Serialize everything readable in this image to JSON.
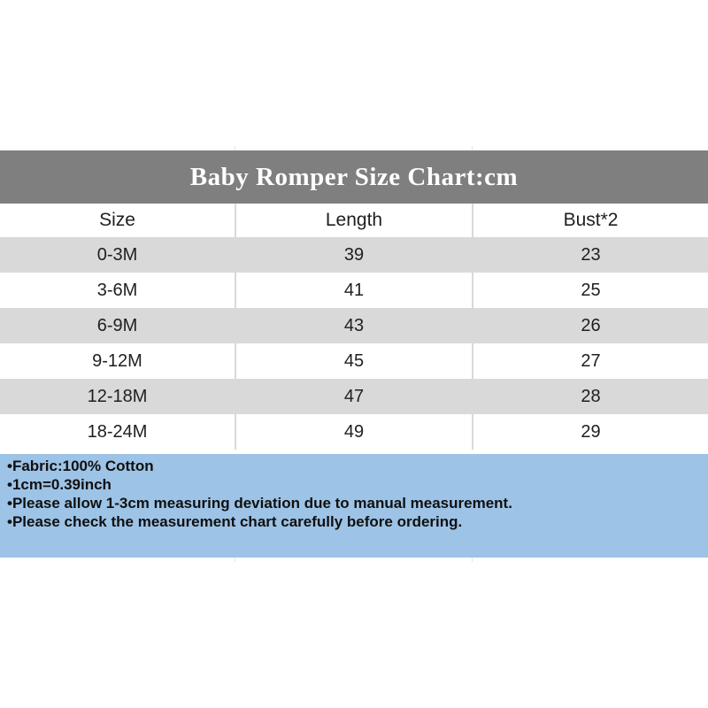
{
  "chart_data": {
    "type": "table",
    "title": "Baby Romper Size Chart:cm",
    "columns": [
      "Size",
      "Length",
      "Bust*2"
    ],
    "rows": [
      [
        "0-3M",
        "39",
        "23"
      ],
      [
        "3-6M",
        "41",
        "25"
      ],
      [
        "6-9M",
        "43",
        "26"
      ],
      [
        "9-12M",
        "45",
        "27"
      ],
      [
        "12-18M",
        "47",
        "28"
      ],
      [
        "18-24M",
        "49",
        "29"
      ]
    ],
    "notes": [
      "•Fabric:100% Cotton",
      "•1cm=0.39inch",
      "•Please allow 1-3cm measuring deviation due to manual measurement.",
      "•Please check the measurement chart carefully before ordering."
    ],
    "layout_hints": {
      "alternating_row_shading": true,
      "first_shaded_row_index": 0
    }
  },
  "colors": {
    "title_bar_bg": "#7f7f7f",
    "title_text": "#ffffff",
    "row_shaded_bg": "#d9d9d9",
    "row_plain_bg": "#ffffff",
    "column_divider": "#d9d9d9",
    "footer_bg": "#9dc3e6",
    "body_text": "#1f1f1f",
    "note_text": "#101010"
  }
}
